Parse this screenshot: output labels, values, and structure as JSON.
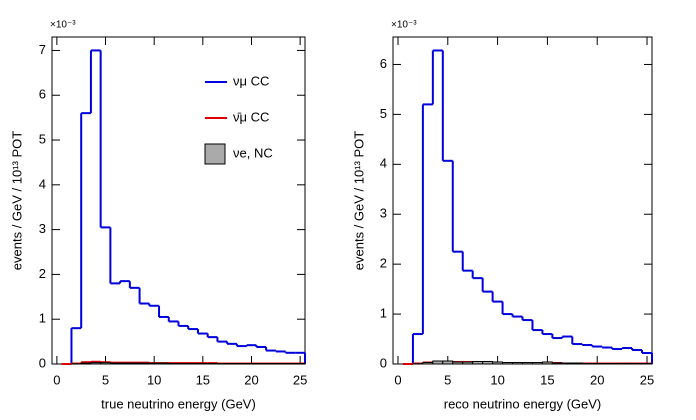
{
  "chart_data": [
    {
      "type": "histogram",
      "xlabel": "true neutrino energy (GeV)",
      "ylabel": "events / GeV / 10¹³ POT",
      "multiplier": "×10⁻³",
      "bins": [
        0.5,
        1.5,
        2.5,
        3.5,
        4.5,
        5.5,
        6.5,
        7.5,
        8.5,
        9.5,
        10.5,
        11.5,
        12.5,
        13.5,
        14.5,
        15.5,
        16.5,
        17.5,
        18.5,
        19.5,
        20.5,
        21.5,
        22.5,
        23.5,
        24.5,
        25.5
      ],
      "xlim": [
        -0.5,
        25.5
      ],
      "xticks": [
        0,
        5,
        10,
        15,
        20,
        25
      ],
      "ylim": [
        0,
        7.3
      ],
      "yticks": [
        0,
        1,
        2,
        3,
        4,
        5,
        6,
        7
      ],
      "legend": "upper right",
      "series": [
        {
          "name": "νμ CC",
          "color": "#0000dd",
          "style": "step",
          "values": [
            0,
            0.8,
            5.6,
            7.0,
            3.05,
            1.8,
            1.85,
            1.7,
            1.35,
            1.3,
            1.05,
            0.95,
            0.85,
            0.78,
            0.68,
            0.6,
            0.5,
            0.45,
            0.4,
            0.42,
            0.38,
            0.3,
            0.28,
            0.25,
            0.25
          ]
        },
        {
          "name": "ν̄μ CC",
          "color": "#dd0000",
          "style": "step",
          "values": [
            0,
            0.01,
            0.04,
            0.05,
            0.04,
            0.03,
            0.03,
            0.03,
            0.03,
            0.02,
            0.02,
            0.02,
            0.02,
            0.02,
            0.02,
            0.02,
            0.01,
            0.01,
            0.01,
            0.01,
            0.01,
            0.01,
            0.01,
            0.01,
            0.01
          ]
        },
        {
          "name": "νe, NC",
          "color": "#aaaaaa",
          "style": "fill",
          "values": [
            0,
            0.005,
            0.02,
            0.03,
            0.03,
            0.02,
            0.02,
            0.02,
            0.02,
            0.02,
            0.02,
            0.01,
            0.01,
            0.01,
            0.01,
            0.01,
            0.01,
            0.01,
            0.01,
            0.01,
            0.01,
            0.01,
            0.01,
            0.01,
            0.01
          ]
        }
      ]
    },
    {
      "type": "histogram",
      "xlabel": "reco neutrino energy (GeV)",
      "ylabel": "events / GeV / 10¹³ POT",
      "multiplier": "×10⁻³",
      "bins": [
        0.5,
        1.5,
        2.5,
        3.5,
        4.5,
        5.5,
        6.5,
        7.5,
        8.5,
        9.5,
        10.5,
        11.5,
        12.5,
        13.5,
        14.5,
        15.5,
        16.5,
        17.5,
        18.5,
        19.5,
        20.5,
        21.5,
        22.5,
        23.5,
        24.5,
        25.5
      ],
      "xlim": [
        -0.5,
        25.5
      ],
      "xticks": [
        0,
        5,
        10,
        15,
        20,
        25
      ],
      "ylim": [
        0,
        6.55
      ],
      "yticks": [
        0,
        1,
        2,
        3,
        4,
        5,
        6
      ],
      "series": [
        {
          "name": "νμ CC",
          "color": "#0000dd",
          "style": "step",
          "values": [
            0,
            0.6,
            5.2,
            6.28,
            4.07,
            2.25,
            1.87,
            1.72,
            1.45,
            1.25,
            1.0,
            0.95,
            0.88,
            0.68,
            0.6,
            0.52,
            0.55,
            0.4,
            0.38,
            0.35,
            0.33,
            0.3,
            0.32,
            0.28,
            0.22
          ]
        },
        {
          "name": "ν̄μ CC",
          "color": "#dd0000",
          "style": "step",
          "values": [
            0,
            0.01,
            0.03,
            0.05,
            0.05,
            0.04,
            0.04,
            0.04,
            0.03,
            0.03,
            0.02,
            0.02,
            0.02,
            0.02,
            0.03,
            0.02,
            0.01,
            0.01,
            0.01,
            0.01,
            0.01,
            0.01,
            0.01,
            0.01,
            0.01
          ]
        },
        {
          "name": "νe, NC",
          "color": "#aaaaaa",
          "style": "fill",
          "values": [
            0,
            0.005,
            0.03,
            0.06,
            0.06,
            0.04,
            0.04,
            0.05,
            0.05,
            0.04,
            0.03,
            0.03,
            0.03,
            0.03,
            0.04,
            0.02,
            0.02,
            0.02,
            0.01,
            0.01,
            0.01,
            0.01,
            0.01,
            0.01,
            0.01
          ]
        }
      ]
    }
  ]
}
